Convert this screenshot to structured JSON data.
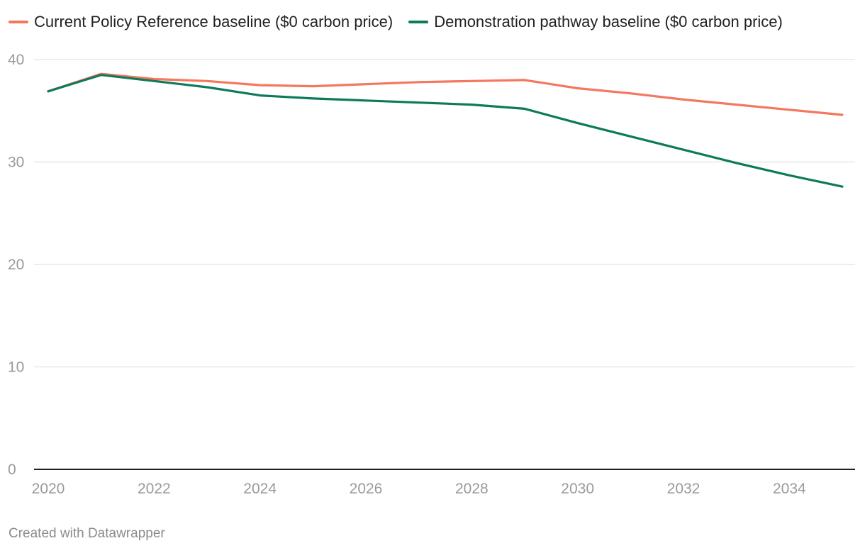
{
  "chart_data": {
    "type": "line",
    "title": "",
    "xlabel": "",
    "ylabel": "",
    "x": [
      2020,
      2021,
      2022,
      2023,
      2024,
      2025,
      2026,
      2027,
      2028,
      2029,
      2030,
      2031,
      2032,
      2033,
      2034,
      2035
    ],
    "series": [
      {
        "name": "Current Policy Reference baseline ($0 carbon price)",
        "color": "#f4775e",
        "values": [
          36.9,
          38.6,
          38.1,
          37.9,
          37.5,
          37.4,
          37.6,
          37.8,
          37.9,
          38.0,
          37.2,
          36.7,
          36.1,
          35.6,
          35.1,
          34.6
        ]
      },
      {
        "name": "Demonstration pathway baseline ($0 carbon price)",
        "color": "#0d7a5c",
        "values": [
          36.9,
          38.5,
          37.9,
          37.3,
          36.5,
          36.2,
          36.0,
          35.8,
          35.6,
          35.2,
          33.8,
          32.5,
          31.2,
          29.9,
          28.7,
          27.6
        ]
      }
    ],
    "yticks": [
      "0",
      "10",
      "20",
      "30",
      "40"
    ],
    "ytick_values": [
      0,
      10,
      20,
      30,
      40
    ],
    "xticks": [
      "2020",
      "2022",
      "2024",
      "2026",
      "2028",
      "2030",
      "2032",
      "2034"
    ],
    "xtick_values": [
      2020,
      2022,
      2024,
      2026,
      2028,
      2030,
      2032,
      2034
    ],
    "ylim": [
      0,
      40
    ],
    "xlim": [
      2020,
      2035
    ],
    "grid": true,
    "legend_position": "top-left"
  },
  "legend": {
    "items": [
      {
        "label": "Current Policy Reference baseline ($0 carbon price)",
        "color": "#f4775e"
      },
      {
        "label": "Demonstration pathway baseline ($0 carbon price)",
        "color": "#0d7a5c"
      }
    ]
  },
  "credit": "Created with Datawrapper"
}
